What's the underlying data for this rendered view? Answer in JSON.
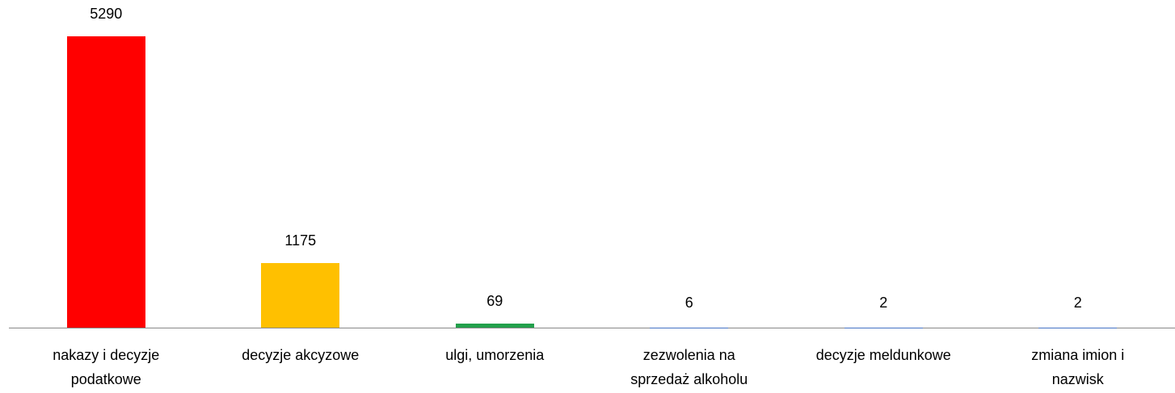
{
  "chart_data": {
    "type": "bar",
    "categories": [
      "nakazy i decyzje podatkowe",
      "decyzje akcyzowe",
      "ulgi, umorzenia",
      "zezwolenia na sprzedaż alkoholu",
      "decyzje meldunkowe",
      "zmiana imion i nazwisk"
    ],
    "values": [
      5290,
      1175,
      69,
      6,
      2,
      2
    ],
    "colors": [
      "#ff0000",
      "#ffc000",
      "#22a04b",
      "#4472c4",
      "#4472c4",
      "#4472c4"
    ]
  }
}
